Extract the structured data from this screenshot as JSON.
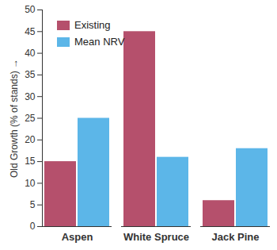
{
  "chart_data": {
    "type": "bar",
    "categories": [
      "Aspen",
      "White Spruce",
      "Jack Pine"
    ],
    "series": [
      {
        "name": "Existing",
        "color": "#b5506c",
        "values": [
          15,
          45,
          6
        ]
      },
      {
        "name": "Mean NRV",
        "color": "#5cb6e8",
        "values": [
          25,
          16,
          18
        ]
      }
    ],
    "y_label": "Old Growth (% of stands)",
    "ylim": [
      0,
      50
    ],
    "yticks": [
      0,
      5,
      10,
      15,
      20,
      25,
      30,
      35,
      40,
      45,
      50
    ],
    "grid": false,
    "legend": "upper left"
  }
}
